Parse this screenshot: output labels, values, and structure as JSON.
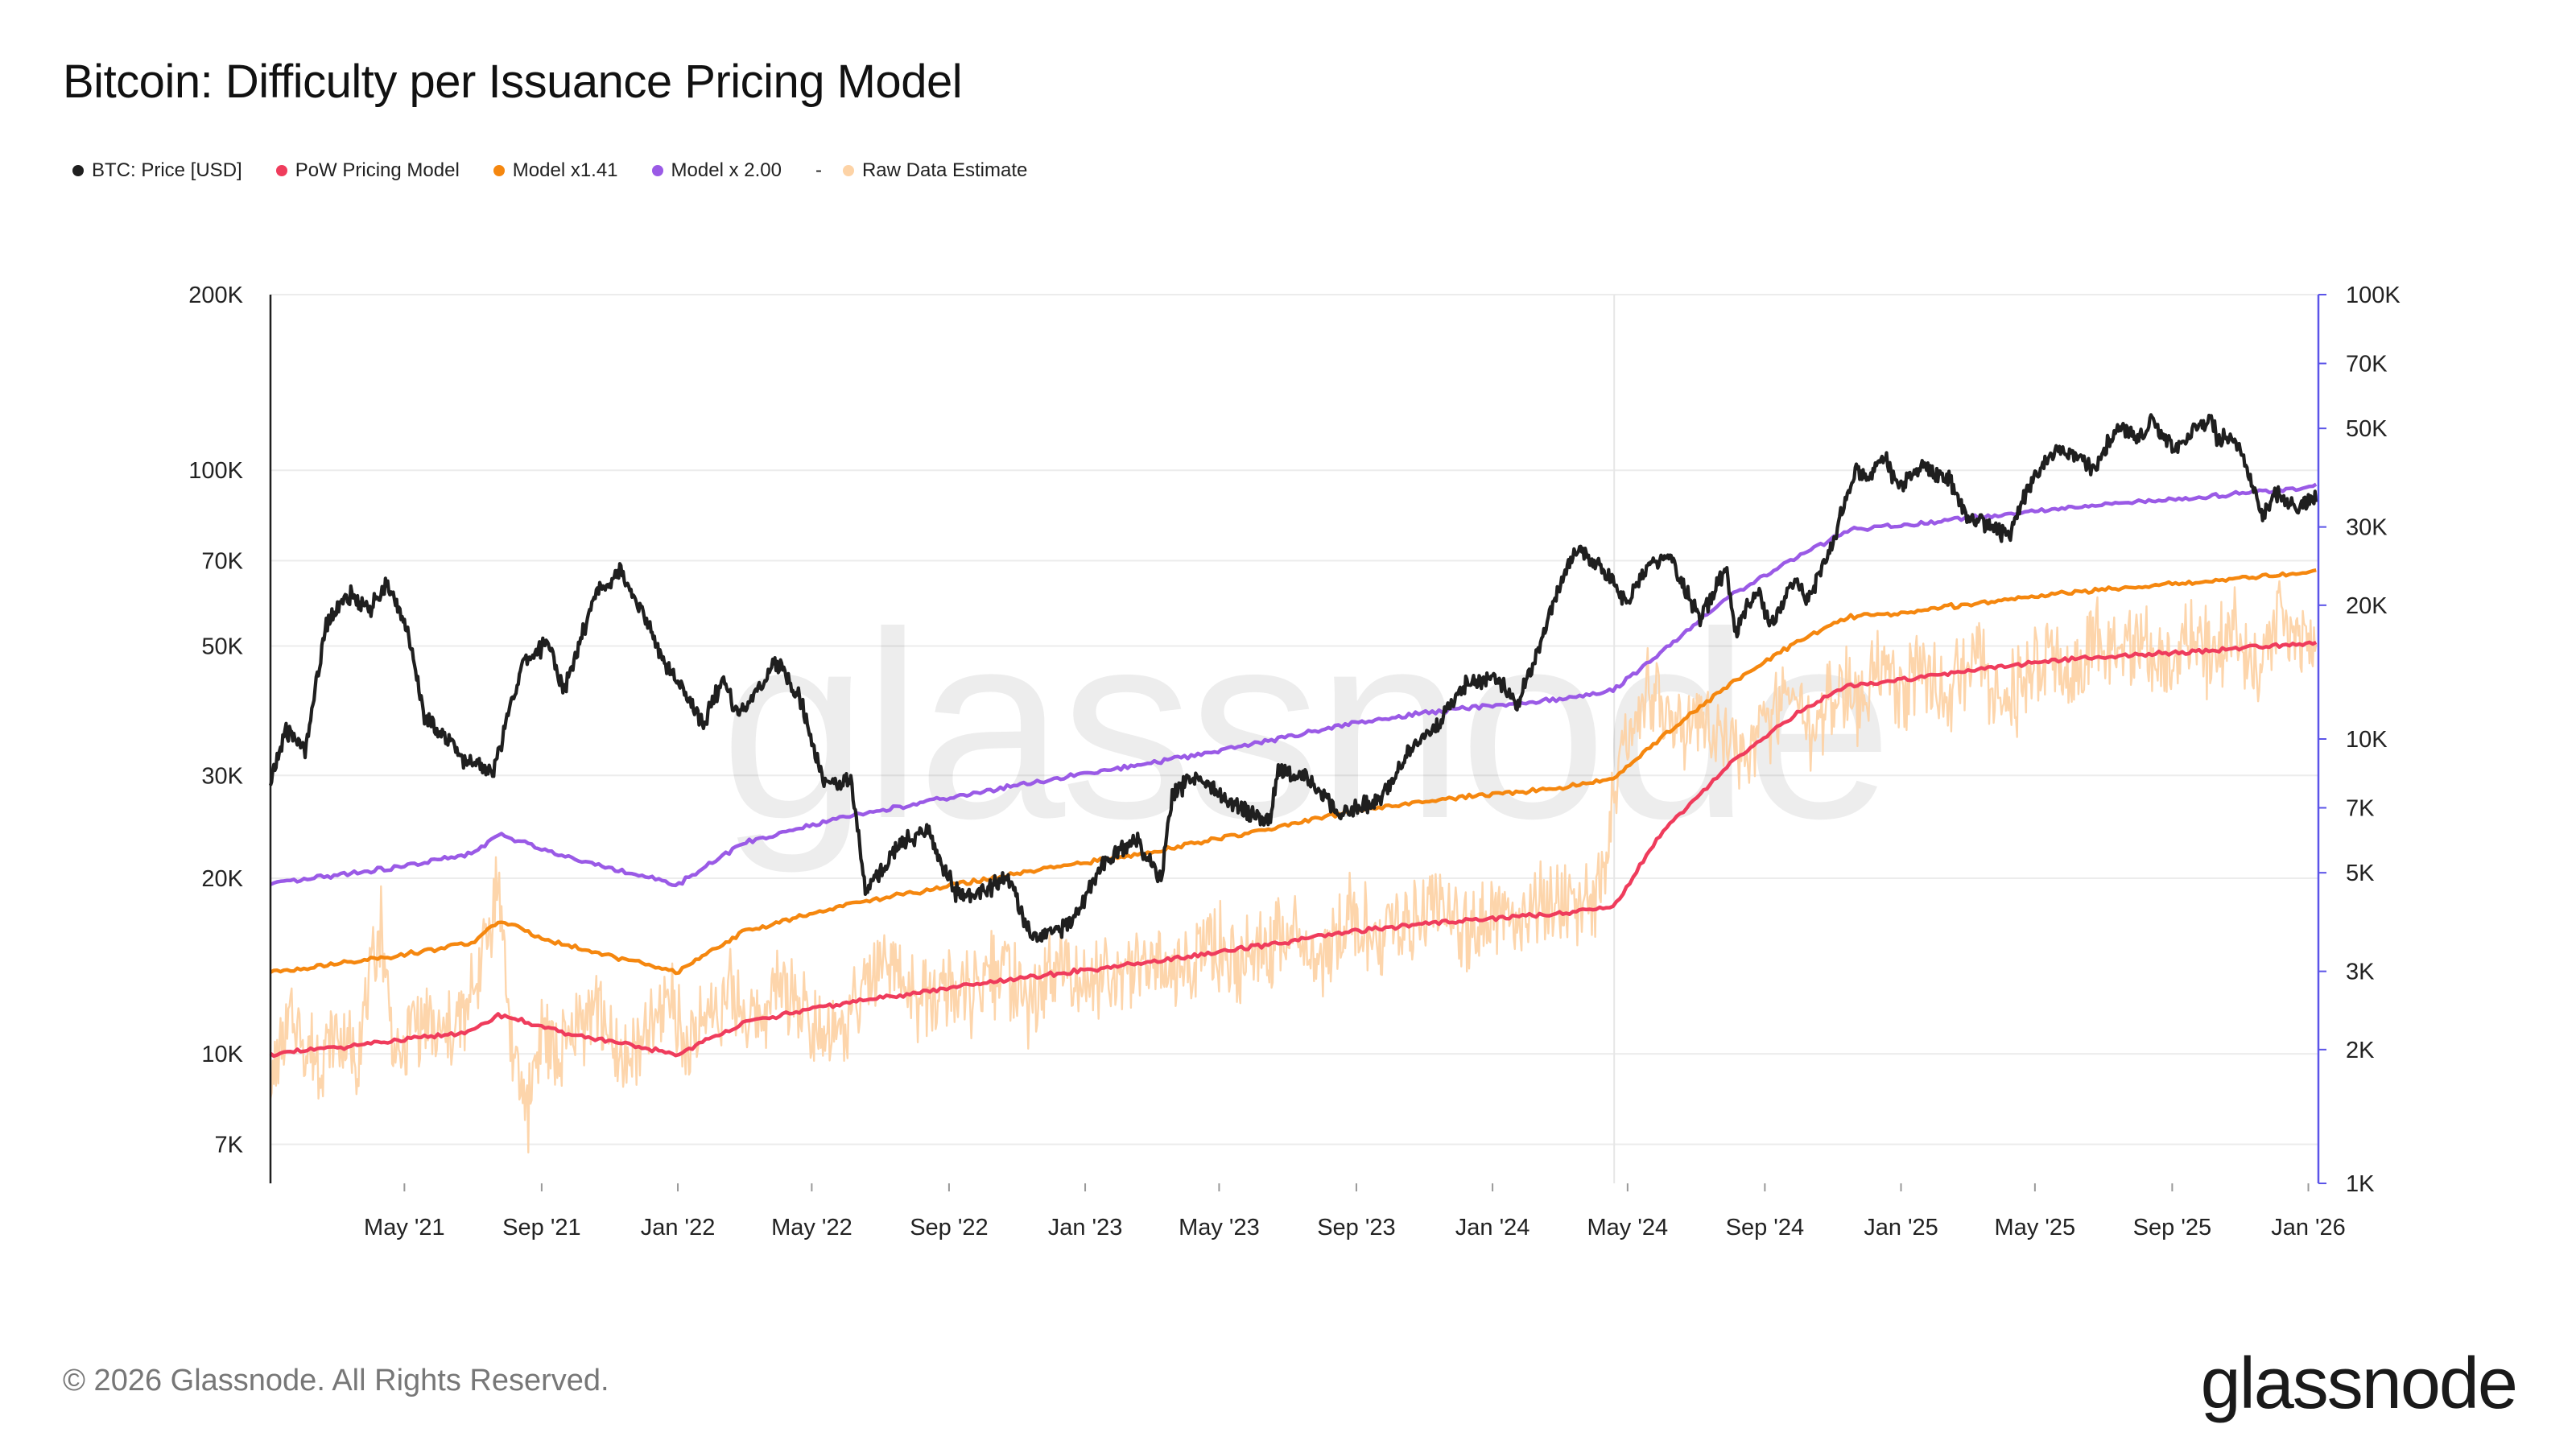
{
  "title": "Bitcoin: Difficulty per Issuance Pricing Model",
  "legend": [
    {
      "label": "BTC: Price [USD]",
      "color": "#1f1f1f"
    },
    {
      "label": "PoW Pricing Model",
      "color": "#ef3c5c"
    },
    {
      "label": "Model x1.41",
      "color": "#f5870f"
    },
    {
      "label": "Model x 2.00",
      "color": "#9a5ae6"
    },
    {
      "label": "Raw Data Estimate",
      "color": "#fdd3a6",
      "dash": "-"
    }
  ],
  "footer": "© 2026 Glassnode. All Rights Reserved.",
  "brand": "glassnode",
  "watermark": "glassnode",
  "chart_data": {
    "type": "line",
    "title": "Bitcoin: Difficulty per Issuance Pricing Model",
    "x_range": [
      "2021-01-01",
      "2026-01-10"
    ],
    "x_ticks": [
      "May '21",
      "Sep '21",
      "Jan '22",
      "May '22",
      "Sep '22",
      "Jan '23",
      "May '23",
      "Sep '23",
      "Jan '24",
      "May '24",
      "Sep '24",
      "Jan '25",
      "May '25",
      "Sep '25",
      "Jan '26"
    ],
    "y_left": {
      "scale": "log",
      "range": [
        6000,
        200000
      ],
      "ticks": [
        7000,
        10000,
        20000,
        30000,
        50000,
        70000,
        100000,
        200000
      ],
      "tick_labels": [
        "7K",
        "10K",
        "20K",
        "30K",
        "50K",
        "70K",
        "100K",
        "200K"
      ]
    },
    "y_right": {
      "scale": "log",
      "range": [
        1000,
        100000
      ],
      "ticks": [
        1000,
        2000,
        3000,
        5000,
        7000,
        10000,
        20000,
        30000,
        50000,
        70000,
        100000
      ],
      "tick_labels": [
        "1K",
        "2K",
        "3K",
        "5K",
        "7K",
        "10K",
        "20K",
        "30K",
        "50K",
        "70K",
        "100K"
      ]
    },
    "series": [
      {
        "name": "BTC: Price [USD]",
        "axis": "left",
        "color": "#1f1f1f",
        "x": [
          "2021-01-01",
          "2021-01-15",
          "2021-02-01",
          "2021-02-20",
          "2021-03-13",
          "2021-04-01",
          "2021-04-14",
          "2021-05-01",
          "2021-05-19",
          "2021-06-01",
          "2021-06-22",
          "2021-07-20",
          "2021-08-14",
          "2021-09-06",
          "2021-09-21",
          "2021-10-20",
          "2021-11-10",
          "2021-12-01",
          "2021-12-20",
          "2022-01-10",
          "2022-01-24",
          "2022-02-10",
          "2022-02-24",
          "2022-03-29",
          "2022-04-20",
          "2022-05-12",
          "2022-06-05",
          "2022-06-18",
          "2022-07-20",
          "2022-08-13",
          "2022-09-06",
          "2022-09-25",
          "2022-10-25",
          "2022-11-09",
          "2022-11-21",
          "2022-12-20",
          "2023-01-14",
          "2023-02-15",
          "2023-03-10",
          "2023-03-20",
          "2023-04-13",
          "2023-05-10",
          "2023-06-15",
          "2023-06-23",
          "2023-07-15",
          "2023-08-17",
          "2023-09-20",
          "2023-10-23",
          "2023-11-15",
          "2023-12-08",
          "2024-01-05",
          "2024-01-23",
          "2024-02-15",
          "2024-03-05",
          "2024-03-14",
          "2024-04-01",
          "2024-04-20",
          "2024-05-01",
          "2024-05-21",
          "2024-06-07",
          "2024-07-05",
          "2024-07-29",
          "2024-08-05",
          "2024-08-25",
          "2024-09-06",
          "2024-09-27",
          "2024-10-10",
          "2024-10-29",
          "2024-11-12",
          "2024-11-22",
          "2024-12-05",
          "2024-12-17",
          "2024-12-30",
          "2025-01-20",
          "2025-02-15",
          "2025-02-28",
          "2025-03-15",
          "2025-04-08",
          "2025-04-25",
          "2025-05-22",
          "2025-06-15",
          "2025-06-22",
          "2025-07-14",
          "2025-08-02",
          "2025-08-14",
          "2025-09-01",
          "2025-09-20",
          "2025-10-06",
          "2025-10-11",
          "2025-10-25",
          "2025-11-05",
          "2025-11-21",
          "2025-12-05",
          "2025-12-20",
          "2026-01-08"
        ],
        "values": [
          29000,
          36000,
          33000,
          55000,
          61000,
          58000,
          63500,
          56000,
          38000,
          36000,
          32000,
          30500,
          46000,
          51000,
          42000,
          62000,
          67000,
          57000,
          47000,
          41000,
          36500,
          44000,
          38000,
          47000,
          41000,
          29000,
          29500,
          19000,
          23000,
          24000,
          19000,
          18800,
          20000,
          16500,
          15800,
          16800,
          20800,
          23500,
          20000,
          28000,
          30000,
          27000,
          25000,
          30500,
          30000,
          26000,
          27000,
          34000,
          37000,
          43000,
          44000,
          39500,
          52000,
          67000,
          73000,
          69000,
          64000,
          59000,
          70000,
          71000,
          56000,
          68000,
          53000,
          63000,
          54000,
          65000,
          60000,
          72000,
          89000,
          99000,
          97000,
          106000,
          93000,
          102000,
          96000,
          84000,
          82000,
          76500,
          94000,
          109000,
          104000,
          100000,
          119000,
          113000,
          123000,
          109000,
          116000,
          124000,
          112000,
          114000,
          103000,
          84000,
          92000,
          86000,
          90000
        ]
      },
      {
        "name": "PoW Pricing Model",
        "axis": "right",
        "color": "#ef3c5c",
        "x": [
          "2021-01-01",
          "2021-05-01",
          "2021-07-01",
          "2021-07-25",
          "2021-09-15",
          "2021-11-15",
          "2022-01-01",
          "2022-03-01",
          "2022-06-01",
          "2022-09-01",
          "2022-12-01",
          "2023-03-01",
          "2023-06-01",
          "2023-09-01",
          "2023-12-01",
          "2024-03-01",
          "2024-04-19",
          "2024-06-01",
          "2024-08-01",
          "2024-10-01",
          "2024-11-15",
          "2025-01-01",
          "2025-04-01",
          "2025-07-01",
          "2025-10-01",
          "2026-01-08"
        ],
        "values": [
          1950,
          2100,
          2200,
          2400,
          2200,
          2050,
          1950,
          2300,
          2550,
          2750,
          2950,
          3150,
          3400,
          3700,
          3900,
          4050,
          4200,
          6200,
          8800,
          11500,
          13200,
          13600,
          14600,
          15300,
          15800,
          16500
        ]
      },
      {
        "name": "Model x1.41",
        "axis": "left",
        "color": "#f5870f",
        "x": [
          "2021-01-01",
          "2021-05-01",
          "2021-07-01",
          "2021-07-25",
          "2021-09-15",
          "2021-11-15",
          "2022-01-01",
          "2022-03-01",
          "2022-06-01",
          "2022-09-01",
          "2022-12-01",
          "2023-03-01",
          "2023-06-01",
          "2023-09-01",
          "2023-12-01",
          "2024-03-01",
          "2024-04-19",
          "2024-06-01",
          "2024-08-01",
          "2024-10-01",
          "2024-11-15",
          "2025-01-01",
          "2025-04-01",
          "2025-07-01",
          "2025-10-01",
          "2026-01-08"
        ],
        "values": [
          13800,
          14800,
          15500,
          16900,
          15500,
          14500,
          13800,
          16200,
          18000,
          19400,
          20800,
          22200,
          24000,
          26100,
          27500,
          28600,
          29600,
          35000,
          43000,
          51000,
          56000,
          57000,
          60000,
          62500,
          64500,
          67000
        ]
      },
      {
        "name": "Model x 2.00",
        "axis": "left",
        "color": "#9a5ae6",
        "x": [
          "2021-01-01",
          "2021-05-01",
          "2021-07-01",
          "2021-07-25",
          "2021-09-15",
          "2021-11-15",
          "2022-01-01",
          "2022-03-01",
          "2022-06-01",
          "2022-09-01",
          "2022-12-01",
          "2023-03-01",
          "2023-06-01",
          "2023-09-01",
          "2023-12-01",
          "2024-03-01",
          "2024-04-19",
          "2024-06-01",
          "2024-08-01",
          "2024-10-01",
          "2024-11-15",
          "2025-01-01",
          "2025-04-01",
          "2025-07-01",
          "2025-10-01",
          "2026-01-08"
        ],
        "values": [
          19500,
          21000,
          22000,
          23800,
          22000,
          20500,
          19500,
          23000,
          25500,
          27500,
          29500,
          31500,
          34000,
          37000,
          39000,
          40500,
          42000,
          49000,
          61000,
          71000,
          79000,
          80500,
          84000,
          87500,
          90000,
          94000
        ]
      },
      {
        "name": "Raw Data Estimate",
        "axis": "right",
        "color": "#fdd3a6",
        "x": [
          "2021-01-01",
          "2021-01-20",
          "2021-02-10",
          "2021-03-01",
          "2021-03-20",
          "2021-04-10",
          "2021-04-17",
          "2021-04-25",
          "2021-05-10",
          "2021-05-25",
          "2021-06-10",
          "2021-06-28",
          "2021-07-10",
          "2021-07-25",
          "2021-08-05",
          "2021-08-20",
          "2021-09-01",
          "2021-09-15",
          "2021-10-01",
          "2021-10-20",
          "2021-11-10",
          "2021-11-25",
          "2021-12-10",
          "2021-12-25",
          "2022-01-10",
          "2022-01-25",
          "2022-02-15",
          "2022-03-10",
          "2022-04-01",
          "2022-04-25",
          "2022-05-20",
          "2022-06-15",
          "2022-07-10",
          "2022-08-05",
          "2022-09-01",
          "2022-09-25",
          "2022-10-20",
          "2022-11-15",
          "2022-12-10",
          "2023-01-05",
          "2023-02-01",
          "2023-03-01",
          "2023-03-25",
          "2023-04-20",
          "2023-05-15",
          "2023-06-10",
          "2023-07-05",
          "2023-08-01",
          "2023-08-25",
          "2023-09-20",
          "2023-10-15",
          "2023-11-10",
          "2023-12-05",
          "2024-01-01",
          "2024-01-25",
          "2024-02-20",
          "2024-03-15",
          "2024-04-10",
          "2024-04-19",
          "2024-05-01",
          "2024-05-20",
          "2024-06-10",
          "2024-07-01",
          "2024-07-25",
          "2024-08-15",
          "2024-09-05",
          "2024-09-25",
          "2024-10-15",
          "2024-11-05",
          "2024-11-25",
          "2024-12-15",
          "2025-01-05",
          "2025-01-25",
          "2025-02-15",
          "2025-03-10",
          "2025-04-01",
          "2025-04-25",
          "2025-05-15",
          "2025-06-05",
          "2025-06-25",
          "2025-07-15",
          "2025-08-05",
          "2025-08-25",
          "2025-09-15",
          "2025-10-05",
          "2025-10-25",
          "2025-11-15",
          "2025-12-05",
          "2025-12-25",
          "2026-01-08"
        ],
        "values": [
          1700,
          2300,
          1900,
          2100,
          2000,
          3800,
          2600,
          1800,
          2400,
          2200,
          2100,
          2500,
          3400,
          4800,
          2000,
          1500,
          2300,
          1900,
          2200,
          2600,
          1800,
          2000,
          2200,
          2700,
          1900,
          2400,
          2700,
          2300,
          2800,
          2500,
          2100,
          2600,
          3000,
          2500,
          2800,
          2600,
          3100,
          2500,
          3200,
          2900,
          2800,
          3300,
          2900,
          3600,
          3100,
          3400,
          3700,
          3200,
          4100,
          3500,
          3800,
          4300,
          3600,
          4200,
          3800,
          4500,
          4000,
          4600,
          7500,
          9500,
          14000,
          9500,
          11000,
          10500,
          9200,
          11000,
          12500,
          10500,
          13500,
          12000,
          15000,
          13000,
          14500,
          12500,
          15500,
          11000,
          14500,
          16000,
          13000,
          17000,
          15500,
          16500,
          14500,
          18000,
          15000,
          17500,
          14500,
          19000,
          16000,
          18500
        ]
      }
    ]
  }
}
